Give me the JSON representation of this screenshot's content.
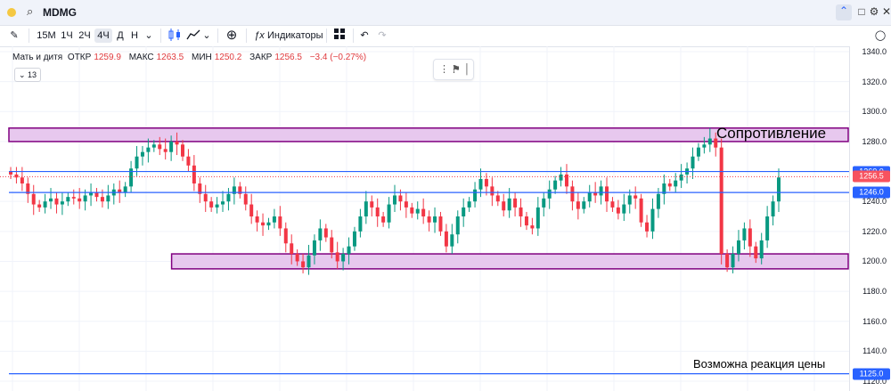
{
  "header": {
    "symbol": "MDMG",
    "icons": [
      "search-icon",
      "collapse-icon",
      "maximize-icon",
      "settings-icon",
      "close-icon"
    ]
  },
  "toolbar": {
    "intervals": [
      "15М",
      "1Ч",
      "2Ч",
      "4Ч",
      "Д",
      "Н"
    ],
    "active_interval": "4Ч",
    "indicators_label": "Индикаторы"
  },
  "legend": {
    "name": "Мать и дитя",
    "open_label": "ОТКР",
    "open": "1259.9",
    "high_label": "МАКС",
    "high": "1263.5",
    "low_label": "МИН",
    "low": "1250.2",
    "close_label": "ЗАКР",
    "close": "1256.5",
    "change": "−3.4 (−0.27%)",
    "collapsed_count": "13"
  },
  "colors": {
    "up": "#089981",
    "down": "#f23645",
    "hline": "#2962ff",
    "zone_border": "#800080",
    "zone_fill": "#e7c8ee",
    "badge_blue": "#2962ff",
    "badge_red": "#f7525f"
  },
  "annotations": {
    "resistance": "Сопротивление",
    "reaction": "Возможна реакция цены"
  },
  "chart_data": {
    "type": "candlestick",
    "ylim": [
      1110,
      1350
    ],
    "y_ticks": [
      1120,
      1140,
      1160,
      1180,
      1200,
      1220,
      1240,
      1260,
      1280,
      1300,
      1320,
      1340
    ],
    "price_labels": [
      {
        "value": 1260.0,
        "label": "1260.0",
        "kind": "hline"
      },
      {
        "value": 1256.5,
        "label": "1256.5",
        "kind": "last"
      },
      {
        "value": 1246.0,
        "label": "1246.0",
        "kind": "hline"
      },
      {
        "value": 1125.0,
        "label": "1125.0",
        "kind": "hline"
      }
    ],
    "horizontal_lines": [
      1260.0,
      1246.0,
      1125.0
    ],
    "zones": [
      {
        "name": "resistance",
        "from": 1280,
        "to": 1289,
        "start": 0.0
      },
      {
        "name": "support",
        "from": 1195,
        "to": 1205,
        "start": 0.2
      }
    ],
    "closes": [
      1258,
      1256,
      1252,
      1245,
      1238,
      1236,
      1240,
      1242,
      1238,
      1240,
      1243,
      1242,
      1240,
      1244,
      1246,
      1243,
      1240,
      1244,
      1248,
      1246,
      1250,
      1262,
      1270,
      1273,
      1276,
      1278,
      1275,
      1273,
      1280,
      1278,
      1270,
      1264,
      1252,
      1245,
      1240,
      1236,
      1238,
      1240,
      1245,
      1250,
      1245,
      1238,
      1230,
      1226,
      1224,
      1226,
      1230,
      1222,
      1212,
      1205,
      1200,
      1196,
      1204,
      1214,
      1222,
      1216,
      1206,
      1200,
      1205,
      1210,
      1220,
      1230,
      1240,
      1236,
      1230,
      1226,
      1238,
      1244,
      1240,
      1236,
      1232,
      1235,
      1230,
      1226,
      1230,
      1220,
      1210,
      1218,
      1230,
      1236,
      1240,
      1248,
      1255,
      1250,
      1244,
      1240,
      1234,
      1242,
      1236,
      1230,
      1224,
      1222,
      1236,
      1242,
      1248,
      1254,
      1258,
      1250,
      1240,
      1235,
      1240,
      1246,
      1244,
      1250,
      1240,
      1236,
      1232,
      1238,
      1244,
      1242,
      1226,
      1220,
      1235,
      1245,
      1252,
      1250,
      1254,
      1258,
      1262,
      1270,
      1276,
      1278,
      1282,
      1276,
      1205,
      1196,
      1205,
      1214,
      1222,
      1210,
      1202,
      1214,
      1230,
      1240,
      1256
    ]
  }
}
